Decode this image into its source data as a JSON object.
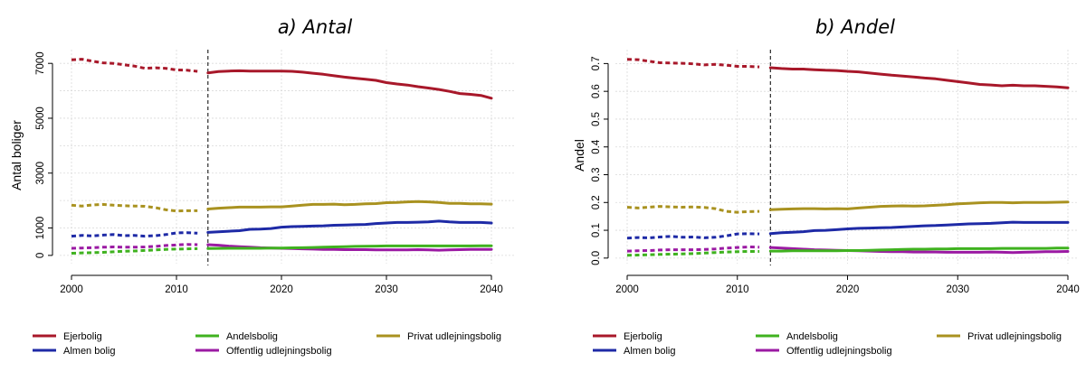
{
  "colors": {
    "Ejerbolig": "#a8182a",
    "Almen bolig": "#1e2aa6",
    "Andelsbolig": "#3fb21f",
    "Offentlig udlejningsbolig": "#9b1aa3",
    "Privat udlejningsbolig": "#a99220"
  },
  "legend": {
    "entries": [
      "Ejerbolig",
      "Andelsbolig",
      "Privat udlejningsbolig",
      "Almen bolig",
      "Offentlig udlejningsbolig"
    ]
  },
  "chart_data": [
    {
      "type": "line",
      "title": "a) Antal",
      "xlabel": "",
      "ylabel": "Antal boliger",
      "xlim": [
        1999,
        2041
      ],
      "ylim": [
        -300,
        7500
      ],
      "xticks": [
        2000,
        2010,
        2020,
        2030,
        2040
      ],
      "yticks": [
        0,
        1000,
        3000,
        5000,
        7000
      ],
      "vline_x": 2013,
      "dashed_before": 2013,
      "grid": true,
      "legend_position": "bottom",
      "x": [
        2000,
        2001,
        2002,
        2003,
        2004,
        2005,
        2006,
        2007,
        2008,
        2009,
        2010,
        2011,
        2012,
        2013,
        2014,
        2015,
        2016,
        2017,
        2018,
        2019,
        2020,
        2021,
        2022,
        2023,
        2024,
        2025,
        2026,
        2027,
        2028,
        2029,
        2030,
        2031,
        2032,
        2033,
        2034,
        2035,
        2036,
        2037,
        2038,
        2039,
        2040
      ],
      "series": [
        {
          "name": "Ejerbolig",
          "values": [
            7130,
            7150,
            7080,
            7020,
            7000,
            6950,
            6900,
            6820,
            6840,
            6820,
            6760,
            6750,
            6710,
            6650,
            6700,
            6720,
            6730,
            6720,
            6720,
            6720,
            6720,
            6710,
            6680,
            6640,
            6600,
            6550,
            6500,
            6460,
            6420,
            6380,
            6300,
            6250,
            6210,
            6150,
            6100,
            6050,
            5980,
            5900,
            5870,
            5830,
            5730
          ]
        },
        {
          "name": "Privat udlejningsbolig",
          "values": [
            1830,
            1800,
            1840,
            1860,
            1830,
            1810,
            1800,
            1790,
            1740,
            1660,
            1620,
            1630,
            1630,
            1690,
            1720,
            1740,
            1760,
            1760,
            1760,
            1770,
            1770,
            1800,
            1830,
            1860,
            1860,
            1870,
            1850,
            1860,
            1880,
            1890,
            1920,
            1930,
            1950,
            1960,
            1950,
            1930,
            1900,
            1900,
            1880,
            1880,
            1870
          ]
        },
        {
          "name": "Almen bolig",
          "values": [
            700,
            730,
            710,
            740,
            760,
            720,
            730,
            700,
            720,
            760,
            820,
            830,
            810,
            840,
            860,
            880,
            900,
            950,
            960,
            980,
            1030,
            1050,
            1060,
            1070,
            1080,
            1100,
            1110,
            1120,
            1130,
            1160,
            1180,
            1200,
            1200,
            1210,
            1220,
            1250,
            1220,
            1200,
            1200,
            1200,
            1180
          ]
        },
        {
          "name": "Offentlig udlejningsbolig",
          "values": [
            260,
            270,
            280,
            300,
            310,
            300,
            300,
            310,
            330,
            360,
            380,
            400,
            390,
            390,
            370,
            340,
            320,
            300,
            280,
            270,
            260,
            250,
            240,
            230,
            220,
            220,
            210,
            210,
            210,
            200,
            200,
            200,
            200,
            210,
            200,
            190,
            200,
            210,
            220,
            220,
            220
          ]
        },
        {
          "name": "Andelsbolig",
          "values": [
            80,
            90,
            100,
            110,
            130,
            150,
            160,
            180,
            200,
            220,
            230,
            240,
            245,
            250,
            255,
            260,
            260,
            260,
            260,
            265,
            270,
            275,
            280,
            290,
            300,
            310,
            320,
            330,
            335,
            340,
            345,
            345,
            345,
            345,
            345,
            345,
            345,
            345,
            345,
            350,
            350
          ]
        }
      ]
    },
    {
      "type": "line",
      "title": "b) Andel",
      "xlabel": "",
      "ylabel": "Andel",
      "xlim": [
        1999,
        2041
      ],
      "ylim": [
        -0.02,
        0.75
      ],
      "xticks": [
        2000,
        2010,
        2020,
        2030,
        2040
      ],
      "yticks": [
        0.0,
        0.1,
        0.2,
        0.3,
        0.4,
        0.5,
        0.6,
        0.7
      ],
      "ytick_labels": [
        "0.0",
        "0.1",
        "0.2",
        "0.3",
        "0.4",
        "0.5",
        "0.6",
        "0.7"
      ],
      "vline_x": 2013,
      "dashed_before": 2013,
      "grid": true,
      "legend_position": "bottom",
      "x": [
        2000,
        2001,
        2002,
        2003,
        2004,
        2005,
        2006,
        2007,
        2008,
        2009,
        2010,
        2011,
        2012,
        2013,
        2014,
        2015,
        2016,
        2017,
        2018,
        2019,
        2020,
        2021,
        2022,
        2023,
        2024,
        2025,
        2026,
        2027,
        2028,
        2029,
        2030,
        2031,
        2032,
        2033,
        2034,
        2035,
        2036,
        2037,
        2038,
        2039,
        2040
      ],
      "series": [
        {
          "name": "Ejerbolig",
          "values": [
            0.715,
            0.714,
            0.708,
            0.703,
            0.702,
            0.701,
            0.699,
            0.695,
            0.697,
            0.694,
            0.69,
            0.69,
            0.688,
            0.685,
            0.682,
            0.68,
            0.68,
            0.678,
            0.676,
            0.675,
            0.672,
            0.67,
            0.666,
            0.662,
            0.658,
            0.655,
            0.652,
            0.648,
            0.645,
            0.64,
            0.635,
            0.63,
            0.625,
            0.623,
            0.62,
            0.622,
            0.62,
            0.62,
            0.618,
            0.616,
            0.613
          ]
        },
        {
          "name": "Privat udlejningsbolig",
          "values": [
            0.183,
            0.18,
            0.183,
            0.186,
            0.184,
            0.183,
            0.184,
            0.182,
            0.178,
            0.168,
            0.165,
            0.167,
            0.168,
            0.174,
            0.176,
            0.177,
            0.178,
            0.178,
            0.177,
            0.178,
            0.177,
            0.18,
            0.183,
            0.186,
            0.187,
            0.188,
            0.187,
            0.188,
            0.19,
            0.192,
            0.195,
            0.197,
            0.199,
            0.2,
            0.2,
            0.199,
            0.2,
            0.2,
            0.2,
            0.201,
            0.202
          ]
        },
        {
          "name": "Almen bolig",
          "values": [
            0.072,
            0.074,
            0.073,
            0.076,
            0.078,
            0.075,
            0.076,
            0.073,
            0.075,
            0.08,
            0.087,
            0.088,
            0.087,
            0.088,
            0.091,
            0.093,
            0.095,
            0.099,
            0.1,
            0.102,
            0.105,
            0.107,
            0.108,
            0.109,
            0.11,
            0.112,
            0.114,
            0.116,
            0.117,
            0.119,
            0.121,
            0.123,
            0.124,
            0.125,
            0.127,
            0.129,
            0.128,
            0.128,
            0.128,
            0.128,
            0.128
          ]
        },
        {
          "name": "Offentlig udlejningsbolig",
          "values": [
            0.025,
            0.026,
            0.027,
            0.029,
            0.03,
            0.03,
            0.03,
            0.031,
            0.033,
            0.036,
            0.038,
            0.04,
            0.039,
            0.038,
            0.036,
            0.034,
            0.032,
            0.03,
            0.029,
            0.028,
            0.027,
            0.026,
            0.025,
            0.024,
            0.023,
            0.023,
            0.022,
            0.022,
            0.022,
            0.021,
            0.021,
            0.021,
            0.021,
            0.022,
            0.021,
            0.02,
            0.021,
            0.022,
            0.023,
            0.023,
            0.024
          ]
        },
        {
          "name": "Andelsbolig",
          "values": [
            0.01,
            0.011,
            0.012,
            0.013,
            0.014,
            0.015,
            0.016,
            0.018,
            0.02,
            0.022,
            0.023,
            0.024,
            0.024,
            0.025,
            0.025,
            0.026,
            0.026,
            0.026,
            0.026,
            0.026,
            0.027,
            0.027,
            0.028,
            0.029,
            0.03,
            0.031,
            0.032,
            0.032,
            0.033,
            0.033,
            0.034,
            0.034,
            0.034,
            0.034,
            0.035,
            0.035,
            0.035,
            0.035,
            0.035,
            0.036,
            0.036
          ]
        }
      ]
    }
  ]
}
